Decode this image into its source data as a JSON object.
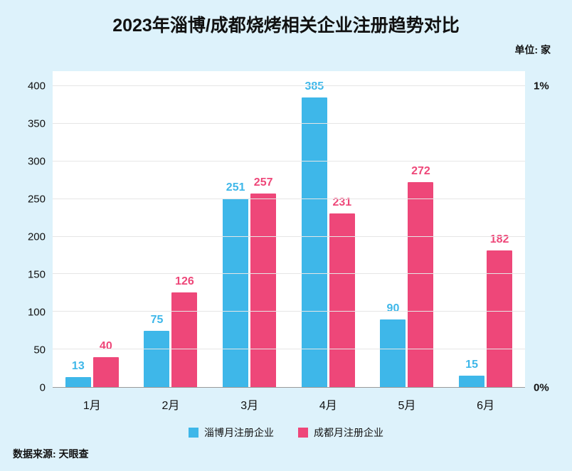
{
  "chart_data": {
    "type": "bar",
    "title": "2023年淄博/成都烧烤相关企业注册趋势对比",
    "unit_label": "单位: 家",
    "categories": [
      "1月",
      "2月",
      "3月",
      "4月",
      "5月",
      "6月"
    ],
    "series": [
      {
        "name": "淄博月注册企业",
        "color": "#3eb7e9",
        "values": [
          13,
          75,
          251,
          385,
          90,
          15
        ]
      },
      {
        "name": "成都月注册企业",
        "color": "#ee4779",
        "values": [
          40,
          126,
          257,
          231,
          272,
          182
        ]
      }
    ],
    "ylim": [
      0,
      420
    ],
    "yticks": [
      0,
      50,
      100,
      150,
      200,
      250,
      300,
      350,
      400
    ],
    "right_axis_labels": [
      {
        "text": "1%",
        "at": 400
      },
      {
        "text": "0%",
        "at": 0
      }
    ],
    "grid": true,
    "legend_position": "bottom"
  },
  "source": "数据来源: 天眼查"
}
